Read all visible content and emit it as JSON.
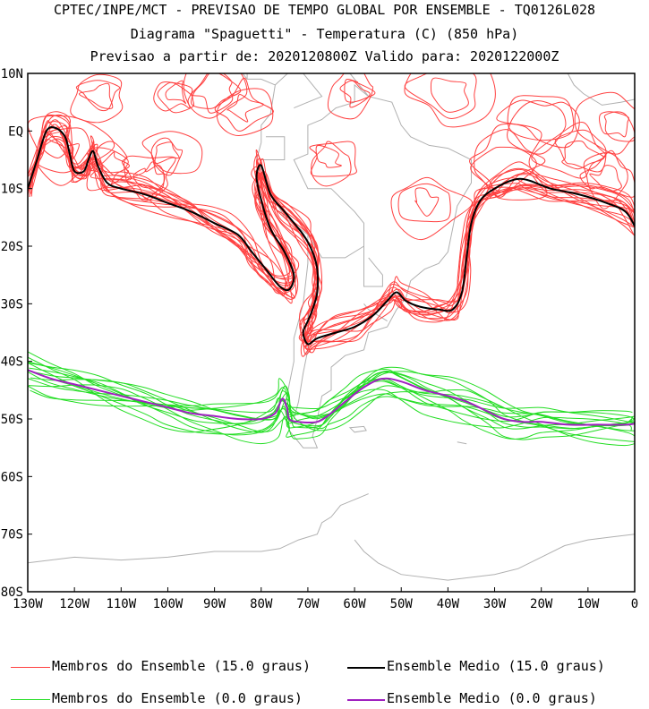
{
  "header": {
    "line1": "CPTEC/INPE/MCT - PREVISAO DE TEMPO GLOBAL POR ENSEMBLE - TQ0126L028",
    "line2": "Diagrama \"Spaguetti\" - Temperatura (C) (850 hPa)",
    "line3": "Previsao a partir de: 2020120800Z  Valido para: 2020122000Z"
  },
  "axes": {
    "lat_labels": [
      "10N",
      "EQ",
      "10S",
      "20S",
      "30S",
      "40S",
      "50S",
      "60S",
      "70S",
      "80S"
    ],
    "lon_labels": [
      "130W",
      "120W",
      "110W",
      "100W",
      "90W",
      "80W",
      "70W",
      "60W",
      "50W",
      "40W",
      "30W",
      "20W",
      "10W",
      "0"
    ]
  },
  "colors": {
    "member_15": "#ff4040",
    "mean_15": "#000000",
    "member_0": "#22dd22",
    "mean_0": "#a020c0",
    "coast": "#b0b0b0"
  },
  "legend": {
    "member_15_label": "Membros do Ensemble (15.0 graus)",
    "mean_15_label": "Ensemble Medio (15.0 graus)",
    "member_0_label": "Membros do Ensemble (0.0 graus)",
    "mean_0_label": "Ensemble Medio (0.0 graus)"
  }
}
